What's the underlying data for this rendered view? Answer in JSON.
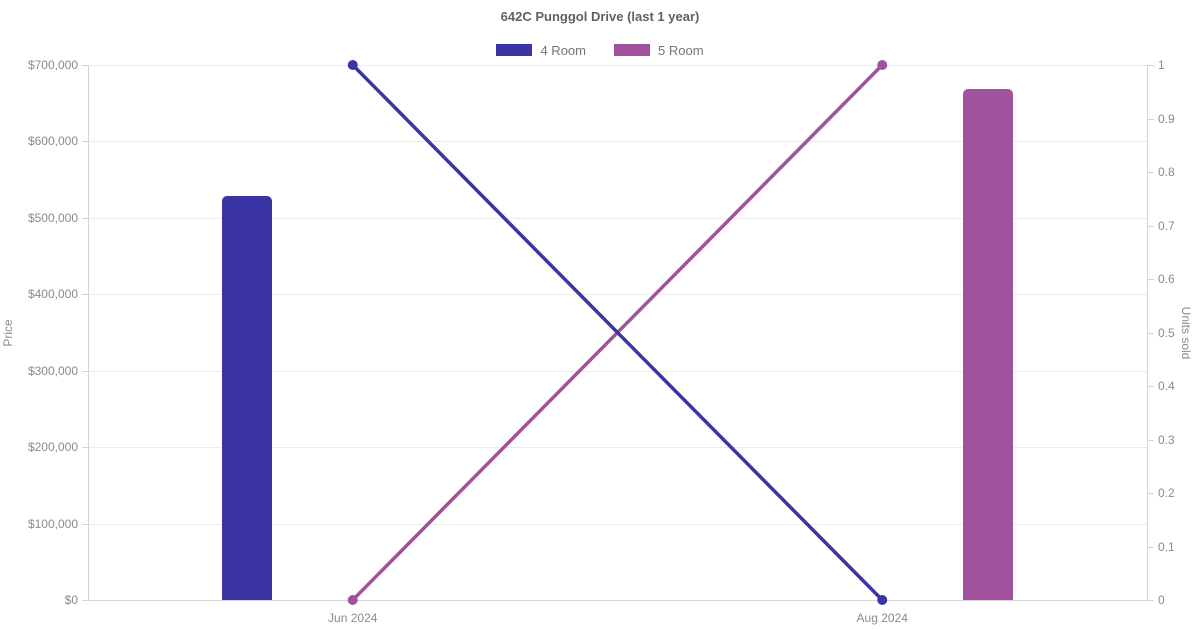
{
  "chart_data": {
    "type": "combo",
    "title": "642C Punggol Drive (last 1 year)",
    "categories": [
      "Jun 2024",
      "Aug 2024"
    ],
    "bar_series": [
      {
        "name": "4 Room",
        "axis": "price",
        "color": "#3a34a4",
        "values": [
          529000,
          null
        ]
      },
      {
        "name": "5 Room",
        "axis": "price",
        "color": "#a1529c",
        "values": [
          null,
          668000
        ]
      }
    ],
    "line_series": [
      {
        "name": "5 Room",
        "axis": "units",
        "color": "#a1529c",
        "values": [
          0,
          1
        ]
      },
      {
        "name": "4 Room",
        "axis": "units",
        "color": "#3a34a4",
        "values": [
          1,
          0
        ]
      }
    ],
    "legend": [
      {
        "label": "4 Room",
        "color": "#3a34a4"
      },
      {
        "label": "5 Room",
        "color": "#a1529c"
      }
    ],
    "y_left": {
      "label": "Price",
      "min": 0,
      "max": 700000,
      "tick_step": 100000,
      "tick_labels": [
        "$0",
        "$100,000",
        "$200,000",
        "$300,000",
        "$400,000",
        "$500,000",
        "$600,000",
        "$700,000"
      ]
    },
    "y_right": {
      "label": "Units sold",
      "min": 0,
      "max": 1,
      "tick_step": 0.1,
      "tick_labels": [
        "0",
        "0.1",
        "0.2",
        "0.3",
        "0.4",
        "0.5",
        "0.6",
        "0.7",
        "0.8",
        "0.9",
        "1"
      ]
    },
    "grid": "horizontal-only",
    "legend_position": "top-center"
  }
}
